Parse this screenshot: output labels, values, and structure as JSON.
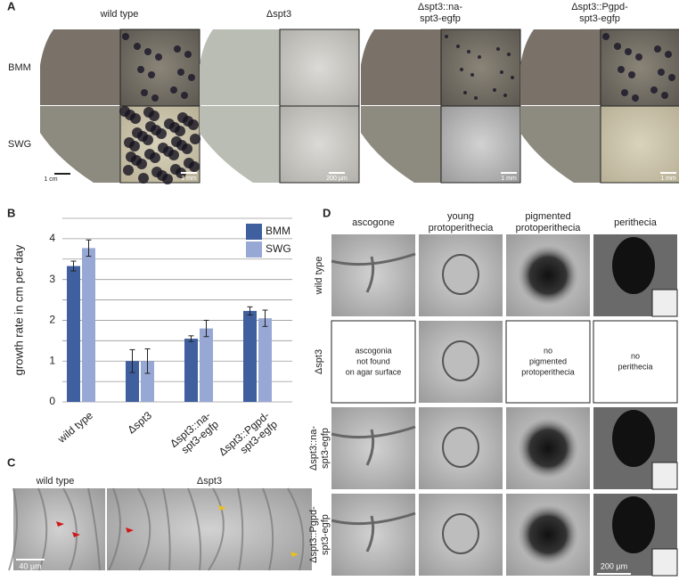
{
  "panel_labels": [
    "A",
    "B",
    "C",
    "D"
  ],
  "panel_a": {
    "columns": [
      [
        "wild type"
      ],
      [
        "Δspt3"
      ],
      [
        "Δspt3::na-",
        "spt3-egfp"
      ],
      [
        "Δspt3::Pgpd-",
        "spt3-egfp"
      ]
    ],
    "rows": [
      "BMM",
      "SWG"
    ],
    "scale_bars": [
      "1 cm",
      "1 mm",
      "200 µm",
      "1 mm",
      "1 mm"
    ]
  },
  "chart_data": {
    "type": "bar",
    "y_label": "growth rate in cm per day",
    "categories": [
      [
        "wild type"
      ],
      [
        "Δspt3"
      ],
      [
        "Δspt3::na-",
        "spt3-egfp"
      ],
      [
        "Δspt3::Pgpd-",
        "spt3-egfp"
      ]
    ],
    "series": [
      {
        "name": "BMM",
        "color": "#3f5f9e",
        "values": [
          3.33,
          1.0,
          1.55,
          2.23
        ],
        "errors": [
          0.12,
          0.28,
          0.07,
          0.1
        ]
      },
      {
        "name": "SWG",
        "color": "#98a8d4",
        "values": [
          3.77,
          1.0,
          1.8,
          2.05
        ],
        "errors": [
          0.2,
          0.3,
          0.2,
          0.2
        ]
      }
    ],
    "ylim": [
      0,
      4.5
    ],
    "yticks": [
      0,
      1,
      2,
      3,
      4
    ],
    "minor_grid": [
      0.5,
      1.5,
      2.5,
      3.5,
      4.5
    ],
    "grid": true,
    "legend": "top-right"
  },
  "panel_c": {
    "columns": [
      "wild type",
      "Δspt3"
    ],
    "scale_bar": "40 µm"
  },
  "panel_d": {
    "columns": [
      [
        "ascogone"
      ],
      [
        "young",
        "protoperithecia"
      ],
      [
        "pigmented",
        "protoperithecia"
      ],
      [
        "perithecia"
      ]
    ],
    "rows": [
      [
        "wild type"
      ],
      [
        "Δspt3"
      ],
      [
        "Δspt3::na-",
        "spt3-egfp"
      ],
      [
        "Δspt3::Pgpd-",
        "spt3-egfp"
      ]
    ],
    "notes": [
      [
        "ascogonia",
        "not found",
        "on agar surface"
      ],
      [
        "no",
        "pigmented",
        "protoperithecia"
      ],
      [
        "no",
        "perithecia"
      ]
    ],
    "scale_bar": "200 µm"
  }
}
